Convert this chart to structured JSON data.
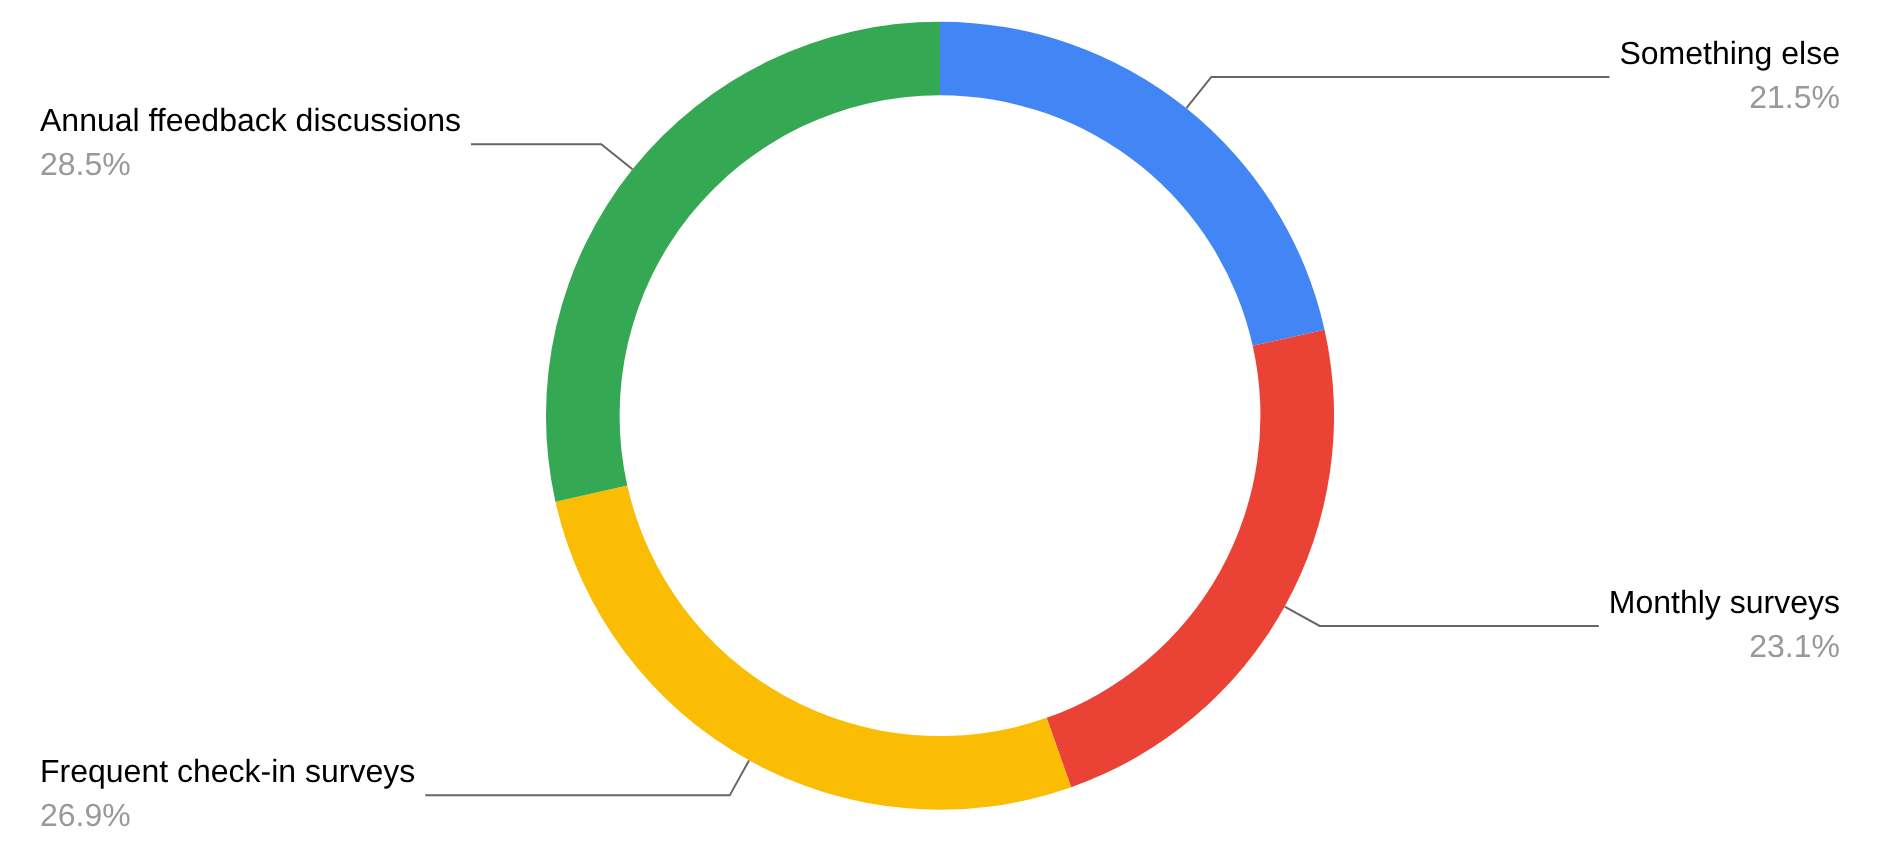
{
  "chart_data": {
    "type": "donut",
    "categories": [
      "Something else",
      "Monthly surveys",
      "Frequent check-in surveys",
      "Annual ffeedback discussions"
    ],
    "values": [
      21.5,
      23.1,
      26.9,
      28.5
    ],
    "colors": [
      "#4285f4",
      "#ea4335",
      "#fbbc04",
      "#34a853"
    ],
    "value_labels": [
      "21.5%",
      "23.1%",
      "26.9%",
      "28.5%"
    ],
    "legend": false
  }
}
